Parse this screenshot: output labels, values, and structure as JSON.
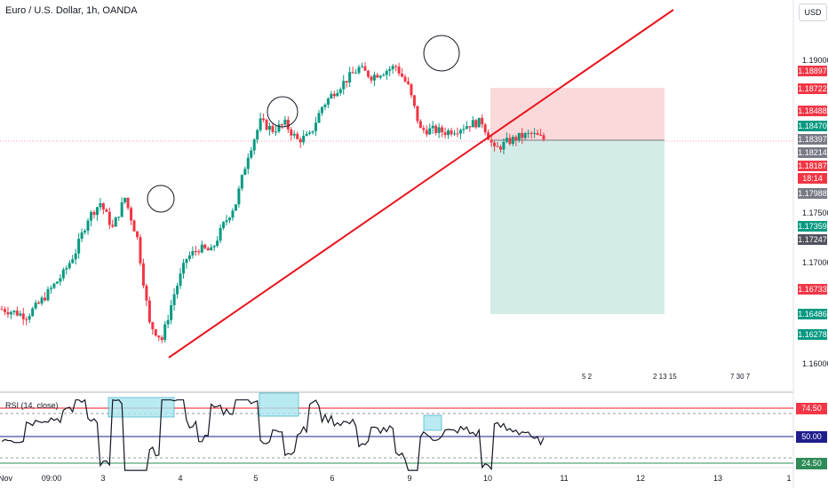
{
  "header": {
    "symbol_title": "Euro / U.S. Dollar, 1h, OANDA",
    "currency_button": "USD"
  },
  "price_scale": [
    {
      "text": "1.19000",
      "kind": "tick",
      "color": ""
    },
    {
      "text": "1.18897",
      "kind": "label",
      "color": "#f23645"
    },
    {
      "text": "1.18722",
      "kind": "label",
      "color": "#f23645"
    },
    {
      "text": "1.18488",
      "kind": "label",
      "color": "#f23645"
    },
    {
      "text": "1.18470",
      "kind": "label",
      "color": "#089981"
    },
    {
      "text": "1.18397",
      "kind": "label",
      "color": "#787b86"
    },
    {
      "text": "1.18214",
      "kind": "label",
      "color": "#787b86"
    },
    {
      "text": "1.18187",
      "kind": "label",
      "color": "#f23645"
    },
    {
      "text": "18:14",
      "kind": "label",
      "color": "#f23645"
    },
    {
      "text": "1.17988",
      "kind": "label",
      "color": "#787b86"
    },
    {
      "text": "1.17500",
      "kind": "tick",
      "color": ""
    },
    {
      "text": "1.17359",
      "kind": "label",
      "color": "#089981"
    },
    {
      "text": "1.17247",
      "kind": "label",
      "color": "#50535e"
    },
    {
      "text": "1.17000",
      "kind": "tick",
      "color": ""
    },
    {
      "text": "1.16733",
      "kind": "label",
      "color": "#f23645"
    },
    {
      "text": "1.16486",
      "kind": "label",
      "color": "#089981"
    },
    {
      "text": "1.16278",
      "kind": "label",
      "color": "#089981"
    },
    {
      "text": "1.16000",
      "kind": "tick",
      "color": ""
    }
  ],
  "time_axis": [
    "Nov",
    "09:00",
    "3",
    "4",
    "5",
    "6",
    "9",
    "10",
    "11",
    "12",
    "13",
    "1"
  ],
  "events": [
    "5 2",
    "2 13 15",
    "7 30 7"
  ],
  "rsi": {
    "title": "RSI (14, close)",
    "upper": "74.50",
    "mid": "50.00",
    "lower": "24.50"
  },
  "colors": {
    "up": "#089981",
    "down": "#f23645",
    "trendline": "#e8141c",
    "stop_zone": "#f9d0d2",
    "target_zone": "#cfeae6"
  },
  "chart_data": {
    "type": "candlestick",
    "title": "Euro / U.S. Dollar, 1h, OANDA",
    "ohlc_close_path": [
      1.1655,
      1.1652,
      1.1648,
      1.166,
      1.1675,
      1.169,
      1.1712,
      1.1745,
      1.176,
      1.1735,
      1.1765,
      1.1725,
      1.164,
      1.1625,
      1.167,
      1.1705,
      1.1715,
      1.1712,
      1.1738,
      1.176,
      1.1808,
      1.184,
      1.1832,
      1.1838,
      1.1822,
      1.1826,
      1.1855,
      1.187,
      1.1882,
      1.1893,
      1.1885,
      1.189,
      1.1895,
      1.1875,
      1.1832,
      1.1832,
      1.183,
      1.1833,
      1.1838,
      1.184,
      1.1812,
      1.182,
      1.1825,
      1.1828,
      1.1823
    ],
    "trendline_from": 1.161,
    "trendline_to": 1.1938,
    "rsi_levels": [
      74.5,
      50.0,
      24.5
    ]
  }
}
